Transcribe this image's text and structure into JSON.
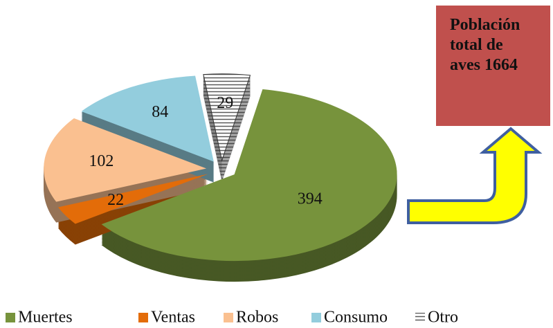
{
  "chart_data": {
    "type": "pie",
    "categories": [
      "Muertes",
      "Ventas",
      "Robos",
      "Consumo",
      "Otro"
    ],
    "values": [
      394,
      22,
      102,
      84,
      29
    ],
    "colors": [
      "#77933c",
      "#e36c09",
      "#fac090",
      "#93cddd",
      "#595959"
    ],
    "patterns": [
      null,
      null,
      null,
      null,
      "horizontal"
    ],
    "annotation": "Población total de aves 1664",
    "legend": "bottom"
  }
}
